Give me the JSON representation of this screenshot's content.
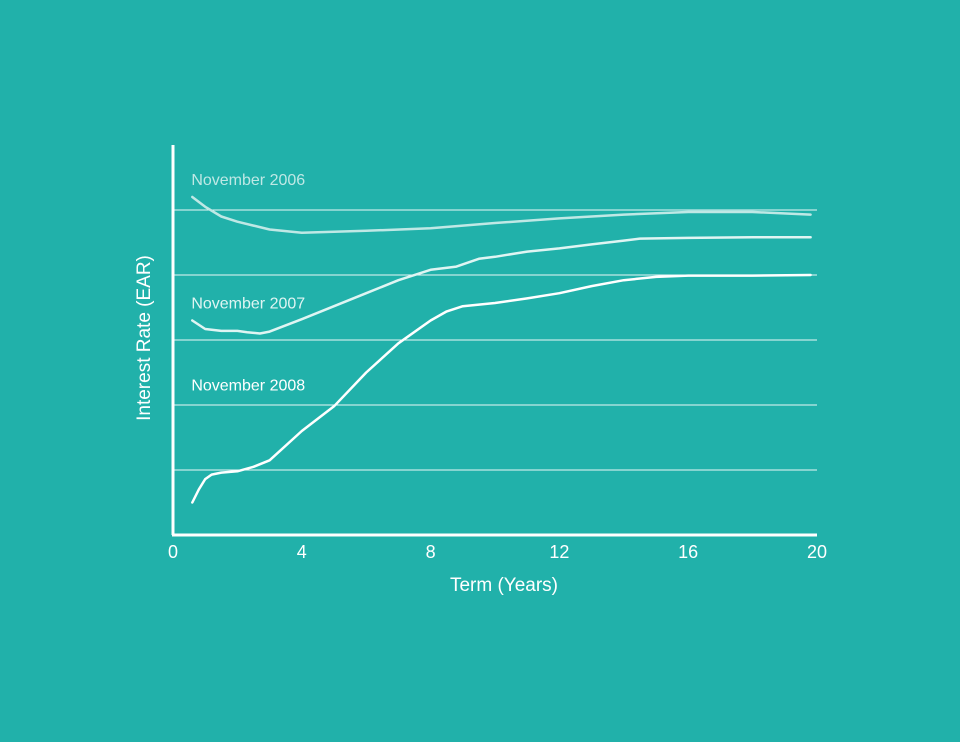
{
  "chart_data": {
    "type": "line",
    "xlabel": "Term (Years)",
    "ylabel": "Interest Rate (EAR)",
    "xlim": [
      0,
      20
    ],
    "ylim": [
      0,
      6
    ],
    "x_ticks": [
      "0",
      "4",
      "8",
      "12",
      "16",
      "20"
    ],
    "x_tick_values": [
      0,
      4,
      8,
      12,
      16,
      20
    ],
    "y_gridlines": [
      1,
      2,
      3,
      4,
      5
    ],
    "y_tick_labels_shown": false,
    "grid": "horizontal",
    "axis_color": "#ffffff",
    "background": "#21b1aa",
    "series": [
      {
        "name": "November 2006",
        "color": "#bfe8e5",
        "x": [
          0.6,
          1.0,
          1.5,
          2.0,
          2.5,
          3.0,
          4.0,
          6.0,
          8.0,
          10.0,
          12.0,
          14.0,
          16.0,
          18.0,
          19.8
        ],
        "y": [
          5.2,
          5.05,
          4.9,
          4.82,
          4.76,
          4.7,
          4.65,
          4.68,
          4.72,
          4.8,
          4.87,
          4.93,
          4.97,
          4.97,
          4.93
        ]
      },
      {
        "name": "November 2007",
        "color": "#dff5f3",
        "x": [
          0.6,
          1.0,
          1.5,
          2.0,
          2.3,
          2.7,
          3.0,
          4.0,
          5.0,
          6.0,
          7.0,
          8.0,
          8.8,
          9.5,
          10.0,
          11.0,
          12.0,
          13.0,
          14.0,
          14.5,
          16.0,
          18.0,
          19.8
        ],
        "y": [
          3.3,
          3.17,
          3.14,
          3.14,
          3.12,
          3.1,
          3.13,
          3.32,
          3.52,
          3.72,
          3.92,
          4.08,
          4.13,
          4.25,
          4.28,
          4.36,
          4.41,
          4.47,
          4.53,
          4.56,
          4.57,
          4.58,
          4.58
        ]
      },
      {
        "name": "November 2008",
        "color": "#ffffff",
        "x": [
          0.6,
          0.8,
          1.0,
          1.2,
          1.5,
          2.0,
          2.5,
          3.0,
          4.0,
          5.0,
          6.0,
          7.0,
          8.0,
          8.5,
          9.0,
          10.0,
          11.0,
          12.0,
          13.0,
          14.0,
          15.0,
          16.0,
          18.0,
          19.8
        ],
        "y": [
          0.5,
          0.7,
          0.86,
          0.93,
          0.96,
          0.98,
          1.05,
          1.15,
          1.6,
          1.98,
          2.5,
          2.95,
          3.3,
          3.44,
          3.52,
          3.57,
          3.64,
          3.72,
          3.83,
          3.92,
          3.97,
          3.99,
          3.99,
          4.0
        ]
      }
    ]
  }
}
